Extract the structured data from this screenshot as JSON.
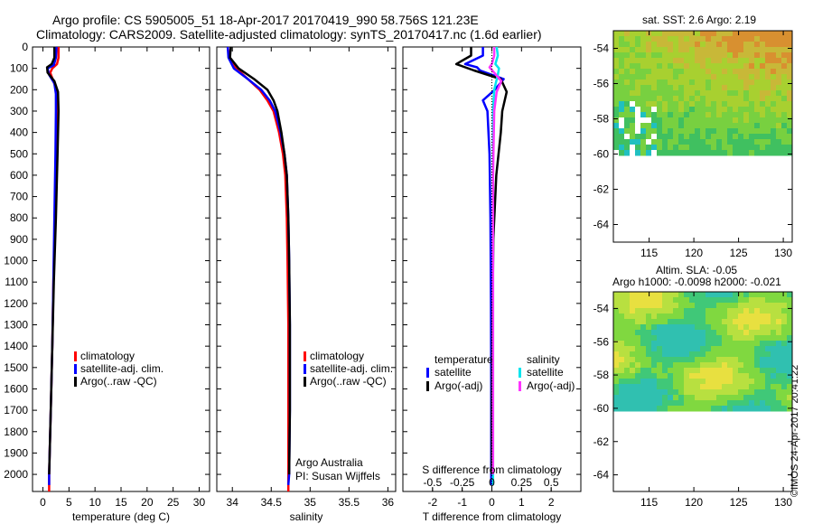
{
  "header": {
    "line1": "Argo profile: CS 5905005_51 18-Apr-2017 20170419_990 58.756S 121.23E",
    "line2": "Climatology: CARS2009. Satellite-adjusted climatology: synTS_20170417.nc (1.6d earlier)"
  },
  "credit": "©IMOS 24-Apr-2017 20:41:22",
  "colors": {
    "climatology": "#ff0000",
    "satellite": "#0000ff",
    "argo": "#000000",
    "sal_satellite": "#00e5ee",
    "sal_argo": "#ff33ff"
  },
  "chart_data": [
    {
      "type": "line",
      "id": "temperature",
      "xlabel": "temperature (deg C)",
      "xticks": [
        0,
        5,
        10,
        15,
        20,
        25,
        30
      ],
      "xlim": [
        -2,
        32
      ],
      "ylim": [
        2080,
        0
      ],
      "yticks": [
        0,
        100,
        200,
        300,
        400,
        500,
        600,
        700,
        800,
        900,
        1000,
        1100,
        1200,
        1300,
        1400,
        1500,
        1600,
        1700,
        1800,
        1900,
        2000
      ],
      "legend": [
        "climatology",
        "satellite-adj. clim.",
        "Argo(..raw -QC)"
      ],
      "series": [
        {
          "name": "climatology",
          "color": "#ff0000",
          "points": [
            [
              3.0,
              0
            ],
            [
              3.0,
              50
            ],
            [
              2.7,
              80
            ],
            [
              1.8,
              100
            ],
            [
              1.4,
              120
            ],
            [
              2.0,
              160
            ],
            [
              2.6,
              200
            ],
            [
              2.6,
              300
            ],
            [
              2.5,
              500
            ],
            [
              2.3,
              800
            ],
            [
              2.0,
              1100
            ],
            [
              1.8,
              1400
            ],
            [
              1.5,
              1700
            ],
            [
              1.3,
              1900
            ],
            [
              1.2,
              2000
            ],
            [
              1.2,
              2080
            ]
          ]
        },
        {
          "name": "satellite-adj. clim.",
          "color": "#0000ff",
          "points": [
            [
              2.6,
              0
            ],
            [
              2.5,
              50
            ],
            [
              2.1,
              85
            ],
            [
              0.9,
              100
            ],
            [
              1.2,
              130
            ],
            [
              2.2,
              170
            ],
            [
              2.5,
              220
            ],
            [
              2.5,
              300
            ],
            [
              2.4,
              500
            ],
            [
              2.2,
              800
            ],
            [
              2.0,
              1100
            ],
            [
              1.8,
              1400
            ],
            [
              1.5,
              1700
            ],
            [
              1.3,
              1900
            ],
            [
              1.2,
              2000
            ],
            [
              1.2,
              2050
            ]
          ]
        },
        {
          "name": "Argo(..raw -QC)",
          "color": "#000000",
          "points": [
            [
              2.2,
              0
            ],
            [
              2.2,
              50
            ],
            [
              1.7,
              80
            ],
            [
              0.8,
              95
            ],
            [
              0.9,
              120
            ],
            [
              2.2,
              160
            ],
            [
              2.9,
              210
            ],
            [
              3.0,
              300
            ],
            [
              2.8,
              500
            ],
            [
              2.5,
              800
            ],
            [
              2.1,
              1100
            ],
            [
              1.8,
              1400
            ],
            [
              1.5,
              1700
            ],
            [
              1.3,
              1900
            ],
            [
              1.2,
              2000
            ]
          ]
        }
      ]
    },
    {
      "type": "line",
      "id": "salinity",
      "xlabel": "salinity",
      "xticks": [
        34,
        34.5,
        35,
        35.5,
        36
      ],
      "xlim": [
        33.8,
        36.1
      ],
      "ylim": [
        2080,
        0
      ],
      "legend": [
        "climatology",
        "satellite-adj. clim.",
        "Argo(..raw -QC)"
      ],
      "annotation": [
        "Argo Australia",
        "PI: Susan Wijffels"
      ],
      "series": [
        {
          "name": "climatology",
          "color": "#ff0000",
          "points": [
            [
              33.94,
              0
            ],
            [
              33.96,
              50
            ],
            [
              34.05,
              100
            ],
            [
              34.2,
              150
            ],
            [
              34.35,
              200
            ],
            [
              34.45,
              250
            ],
            [
              34.53,
              300
            ],
            [
              34.6,
              400
            ],
            [
              34.65,
              500
            ],
            [
              34.68,
              600
            ],
            [
              34.7,
              800
            ],
            [
              34.71,
              1000
            ],
            [
              34.72,
              1300
            ],
            [
              34.72,
              1700
            ],
            [
              34.72,
              2000
            ],
            [
              34.72,
              2080
            ]
          ]
        },
        {
          "name": "satellite-adj. clim.",
          "color": "#0000ff",
          "points": [
            [
              33.94,
              0
            ],
            [
              33.95,
              50
            ],
            [
              34.02,
              100
            ],
            [
              34.2,
              150
            ],
            [
              34.37,
              200
            ],
            [
              34.48,
              250
            ],
            [
              34.55,
              300
            ],
            [
              34.62,
              400
            ],
            [
              34.67,
              500
            ],
            [
              34.7,
              600
            ],
            [
              34.72,
              800
            ],
            [
              34.73,
              1000
            ],
            [
              34.74,
              1300
            ],
            [
              34.74,
              1700
            ],
            [
              34.73,
              2000
            ],
            [
              34.72,
              2050
            ]
          ]
        },
        {
          "name": "Argo(..raw -QC)",
          "color": "#000000",
          "points": [
            [
              33.98,
              0
            ],
            [
              33.97,
              50
            ],
            [
              34.08,
              100
            ],
            [
              34.28,
              150
            ],
            [
              34.45,
              200
            ],
            [
              34.53,
              250
            ],
            [
              34.58,
              300
            ],
            [
              34.63,
              400
            ],
            [
              34.67,
              500
            ],
            [
              34.7,
              600
            ],
            [
              34.72,
              800
            ],
            [
              34.73,
              1000
            ],
            [
              34.74,
              1300
            ],
            [
              34.74,
              1700
            ],
            [
              34.73,
              2000
            ]
          ]
        }
      ]
    },
    {
      "type": "line",
      "id": "difference",
      "xlabel": "T difference from climatology",
      "xticks": [
        -2,
        -1,
        0,
        1,
        2
      ],
      "x2label": "S difference from climatology",
      "x2ticks": [
        -0.5,
        -0.25,
        0,
        0.25,
        0.5
      ],
      "x2lim": [
        -0.75,
        0.75
      ],
      "xlim": [
        -3,
        3
      ],
      "ylim": [
        2080,
        0
      ],
      "legend": {
        "temperature": {
          "heading": "temperature",
          "items": [
            "satellite",
            "Argo(-adj)"
          ]
        },
        "salinity": {
          "heading": "salinity",
          "items": [
            "satellite",
            "Argo(-adj)"
          ]
        }
      },
      "series": [
        {
          "name": "temperature satellite",
          "color": "#0000ff",
          "axis": "T",
          "points": [
            [
              -0.3,
              0
            ],
            [
              -0.3,
              40
            ],
            [
              -0.9,
              80
            ],
            [
              -0.5,
              95
            ],
            [
              -0.4,
              110
            ],
            [
              0.4,
              150
            ],
            [
              0.1,
              200
            ],
            [
              -0.3,
              250
            ],
            [
              -0.15,
              300
            ],
            [
              -0.08,
              500
            ],
            [
              -0.05,
              800
            ],
            [
              -0.03,
              1200
            ],
            [
              -0.02,
              1600
            ],
            [
              -0.02,
              2000
            ],
            [
              -0.02,
              2050
            ]
          ]
        },
        {
          "name": "temperature Argo(-adj)",
          "color": "#000000",
          "axis": "T",
          "points": [
            [
              -0.7,
              0
            ],
            [
              -0.7,
              40
            ],
            [
              -1.2,
              80
            ],
            [
              -0.9,
              95
            ],
            [
              -0.6,
              110
            ],
            [
              0.3,
              150
            ],
            [
              0.5,
              210
            ],
            [
              0.35,
              300
            ],
            [
              0.3,
              400
            ],
            [
              0.15,
              600
            ],
            [
              0.05,
              900
            ],
            [
              0.02,
              1300
            ],
            [
              0.0,
              1700
            ],
            [
              0.0,
              2000
            ]
          ]
        },
        {
          "name": "salinity satellite",
          "color": "#00e5ee",
          "axis": "S",
          "points": [
            [
              0.04,
              0
            ],
            [
              0.05,
              40
            ],
            [
              0.03,
              80
            ],
            [
              0.06,
              100
            ],
            [
              0.05,
              130
            ],
            [
              0.02,
              200
            ],
            [
              0.01,
              300
            ],
            [
              0.01,
              600
            ],
            [
              0.01,
              1000
            ],
            [
              0.01,
              1500
            ],
            [
              0.01,
              2000
            ],
            [
              0.01,
              2050
            ]
          ]
        },
        {
          "name": "salinity Argo(-adj)",
          "color": "#ff33ff",
          "axis": "S",
          "points": [
            [
              0.02,
              0
            ],
            [
              0.02,
              40
            ],
            [
              0.0,
              80
            ],
            [
              -0.02,
              95
            ],
            [
              0.02,
              120
            ],
            [
              0.08,
              160
            ],
            [
              0.04,
              210
            ],
            [
              0.02,
              300
            ],
            [
              0.01,
              600
            ],
            [
              0.01,
              1000
            ],
            [
              0.01,
              1500
            ],
            [
              0.01,
              2000
            ]
          ]
        }
      ]
    },
    {
      "type": "heatmap",
      "id": "sst-map",
      "title": "sat. SST: 2.6 Argo: 2.19",
      "xticks": [
        115,
        120,
        125,
        130
      ],
      "yticks": [
        -54,
        -56,
        -58,
        -60,
        -62,
        -64
      ],
      "xlim": [
        111,
        131
      ],
      "ylim": [
        -65,
        -53
      ],
      "data_extent": {
        "lat_min": -60,
        "lat_max": -53
      }
    },
    {
      "type": "heatmap",
      "id": "sla-map",
      "title_lines": [
        "Altim. SLA: -0.05",
        "Argo h1000: -0.0098 h2000: -0.021"
      ],
      "xticks": [
        115,
        120,
        125,
        130
      ],
      "yticks": [
        -54,
        -56,
        -58,
        -60,
        -62,
        -64
      ],
      "xlim": [
        111,
        131
      ],
      "ylim": [
        -65,
        -53
      ],
      "data_extent": {
        "lat_min": -60,
        "lat_max": -53
      }
    }
  ]
}
